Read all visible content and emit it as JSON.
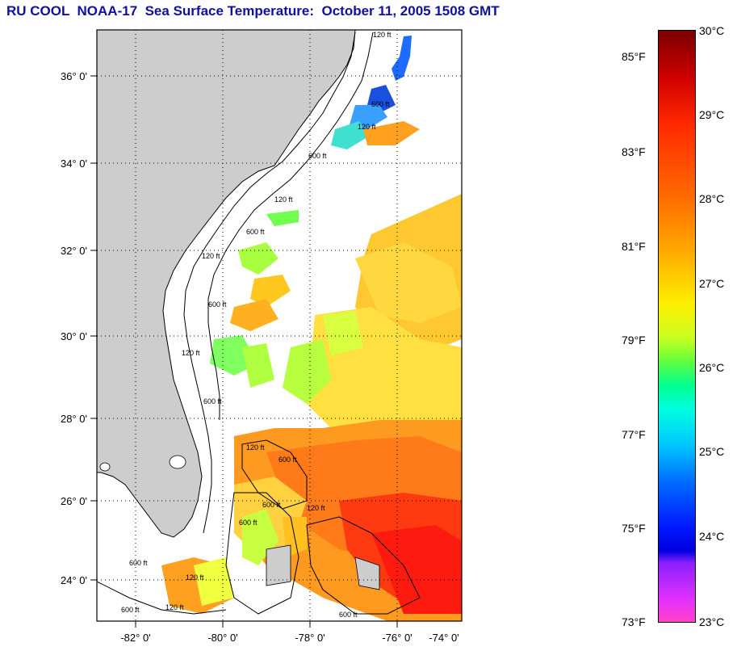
{
  "title": "RU COOL  NOAA-17  Sea Surface Temperature:  October 11, 2005 1508 GMT",
  "map": {
    "lat_labels": [
      "36° 0'",
      "34° 0'",
      "32° 0'",
      "30° 0'",
      "28° 0'",
      "26° 0'",
      "24° 0'"
    ],
    "lon_labels": [
      "-82° 0'",
      "-80° 0'",
      "-78° 0'",
      "-76° 0'",
      "-74° 0'"
    ],
    "contour_labels": [
      "120 ft",
      "600 ft",
      "120 ft",
      "600 ft",
      "120 ft",
      "600 ft",
      "120 ft",
      "600 ft",
      "120 ft",
      "600 ft",
      "120 ft",
      "600 ft",
      "600 ft",
      "120 ft",
      "600 ft",
      "120 ft",
      "600 ft",
      "600 ft",
      "120 ft",
      "600 ft"
    ]
  },
  "colorbar": {
    "celsius": [
      "30°C",
      "29°C",
      "28°C",
      "27°C",
      "26°C",
      "25°C",
      "24°C",
      "23°C"
    ],
    "fahrenheit": [
      "85°F",
      "83°F",
      "81°F",
      "79°F",
      "77°F",
      "75°F",
      "73°F"
    ]
  }
}
